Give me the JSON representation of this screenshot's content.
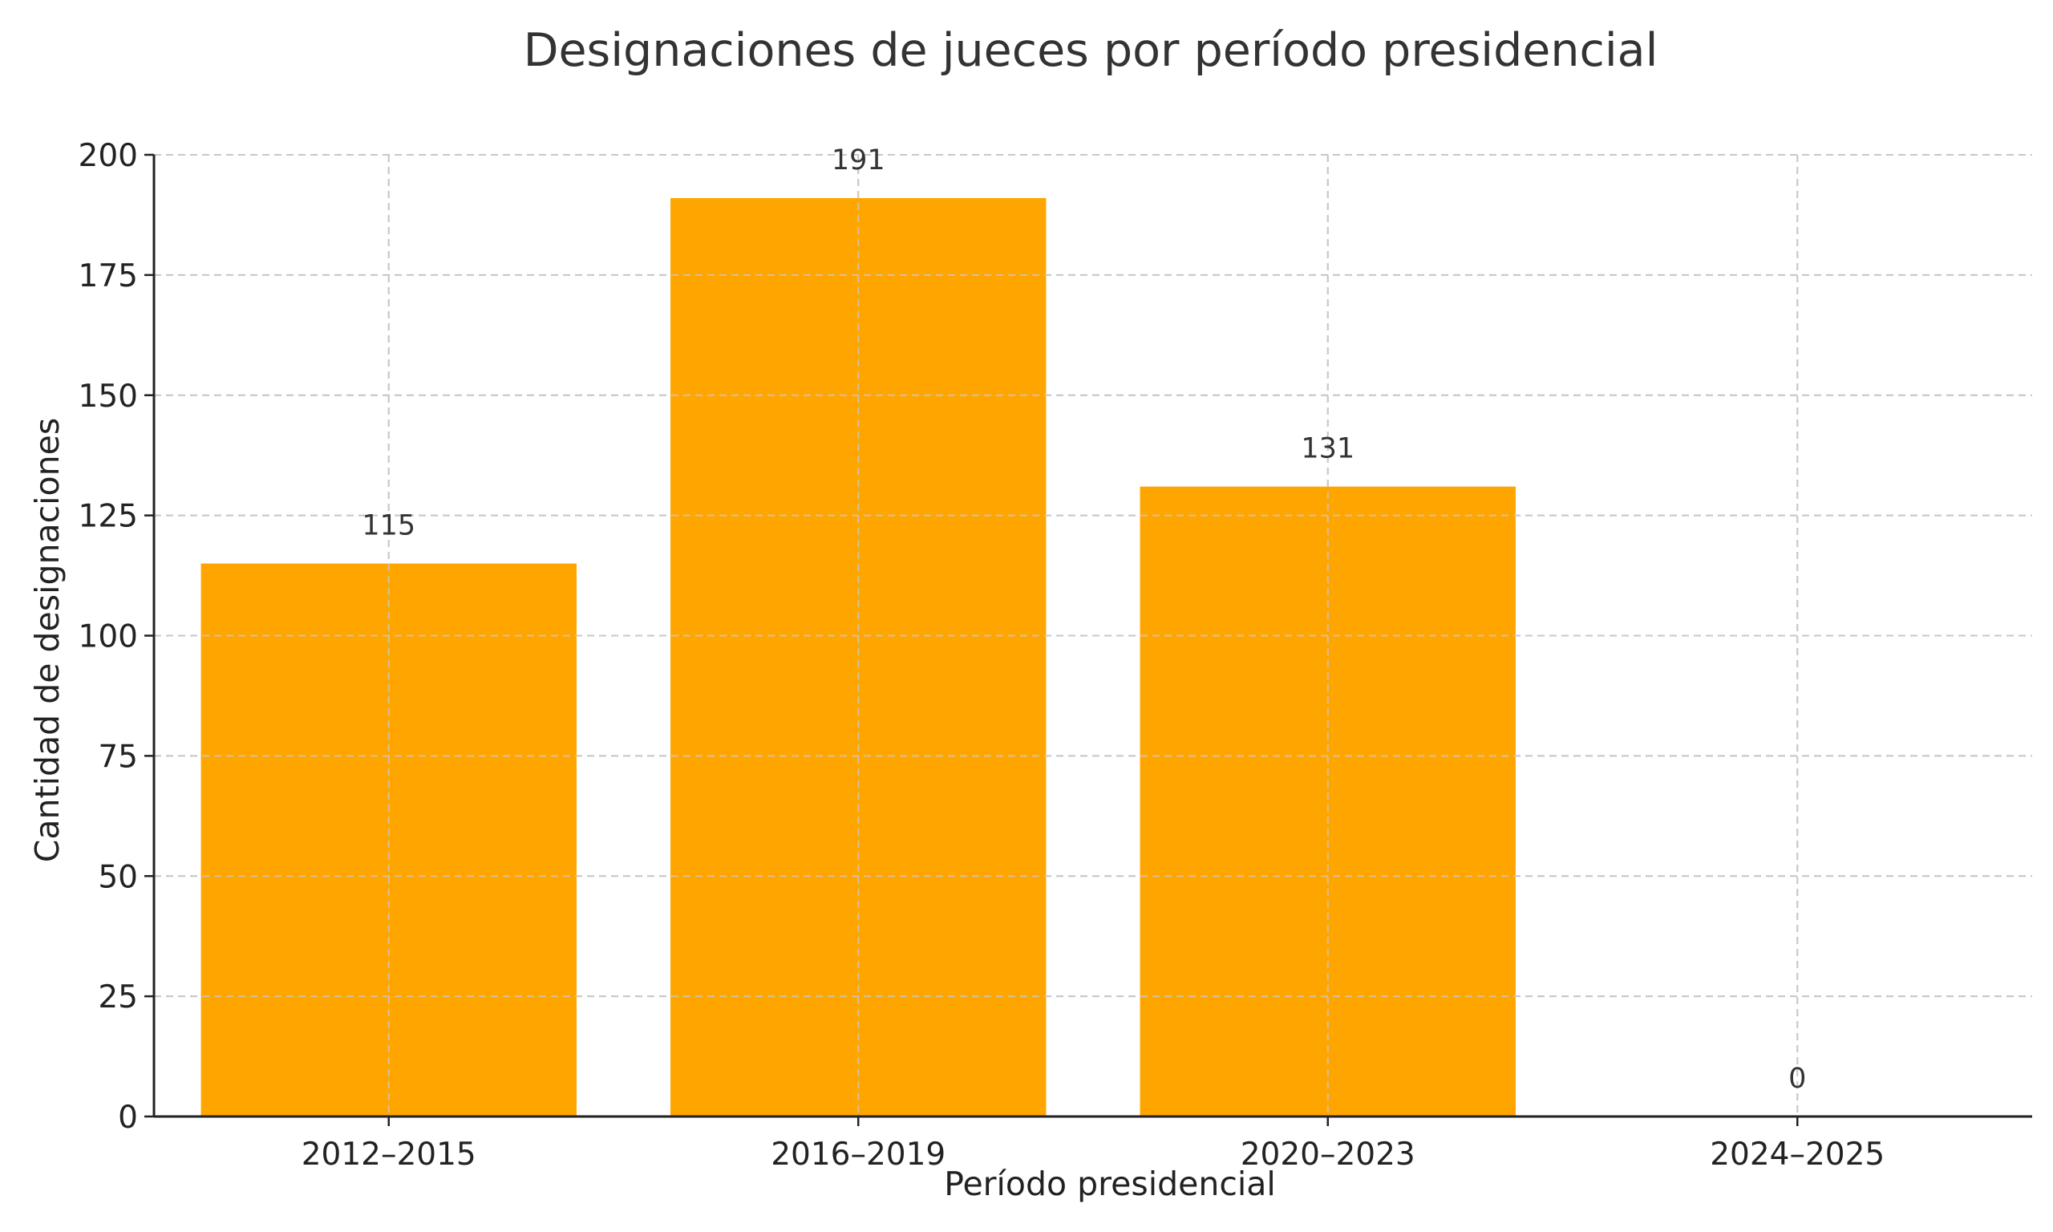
{
  "chart_data": {
    "type": "bar",
    "title": "Designaciones de jueces por período presidencial",
    "xlabel": "Período presidencial",
    "ylabel": "Cantidad de designaciones",
    "categories": [
      "2012–2015",
      "2016–2019",
      "2020–2023",
      "2024–2025"
    ],
    "values": [
      115,
      191,
      131,
      0
    ],
    "data_labels": [
      "115",
      "191",
      "131",
      "0"
    ],
    "ylim": [
      0,
      200
    ],
    "yticks": [
      0,
      25,
      50,
      75,
      100,
      125,
      150,
      175,
      200
    ],
    "ytick_labels": [
      "0",
      "25",
      "50",
      "75",
      "100",
      "125",
      "150",
      "175",
      "200"
    ],
    "grid": true,
    "bar_color": "#FFA500",
    "grid_color": "#c8c8c8",
    "axis_color": "#222222"
  }
}
